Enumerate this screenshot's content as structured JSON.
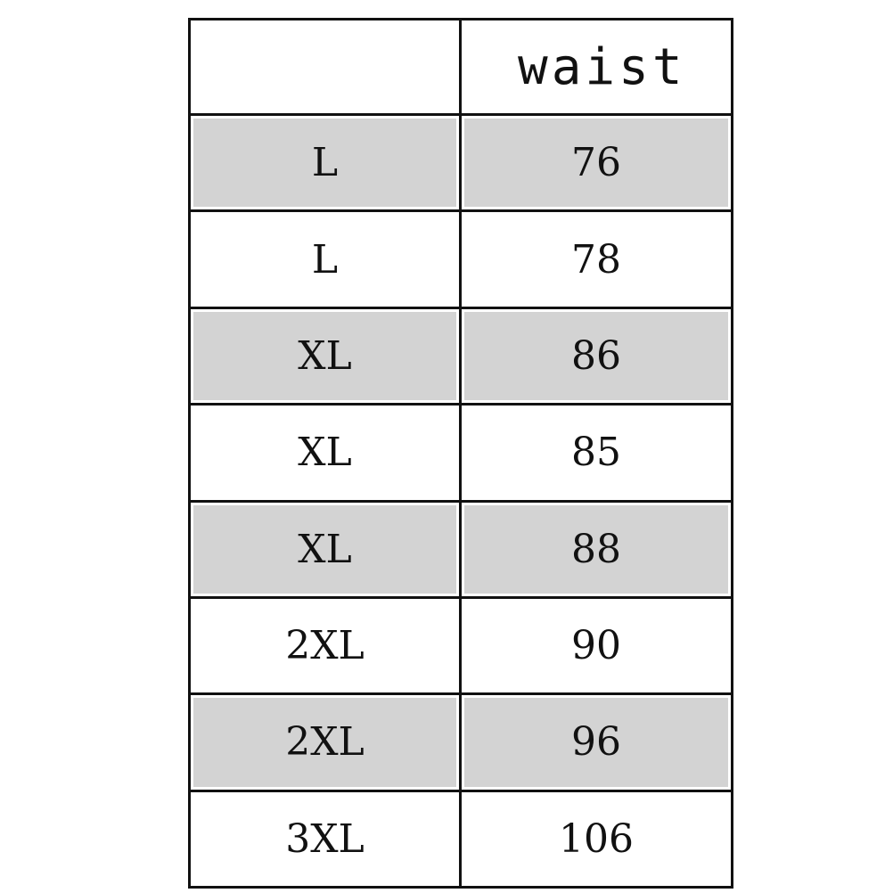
{
  "table": {
    "headers": [
      "",
      "waist"
    ],
    "rows": [
      {
        "size": "L",
        "waist": "76",
        "shaded": true
      },
      {
        "size": "L",
        "waist": "78",
        "shaded": false
      },
      {
        "size": "XL",
        "waist": "86",
        "shaded": true
      },
      {
        "size": "XL",
        "waist": "85",
        "shaded": false
      },
      {
        "size": "XL",
        "waist": "88",
        "shaded": true
      },
      {
        "size": "2XL",
        "waist": "90",
        "shaded": false
      },
      {
        "size": "2XL",
        "waist": "96",
        "shaded": true
      },
      {
        "size": "3XL",
        "waist": "106",
        "shaded": false
      }
    ],
    "colors": {
      "border": "#111111",
      "shade": "#d3d3d3"
    }
  }
}
